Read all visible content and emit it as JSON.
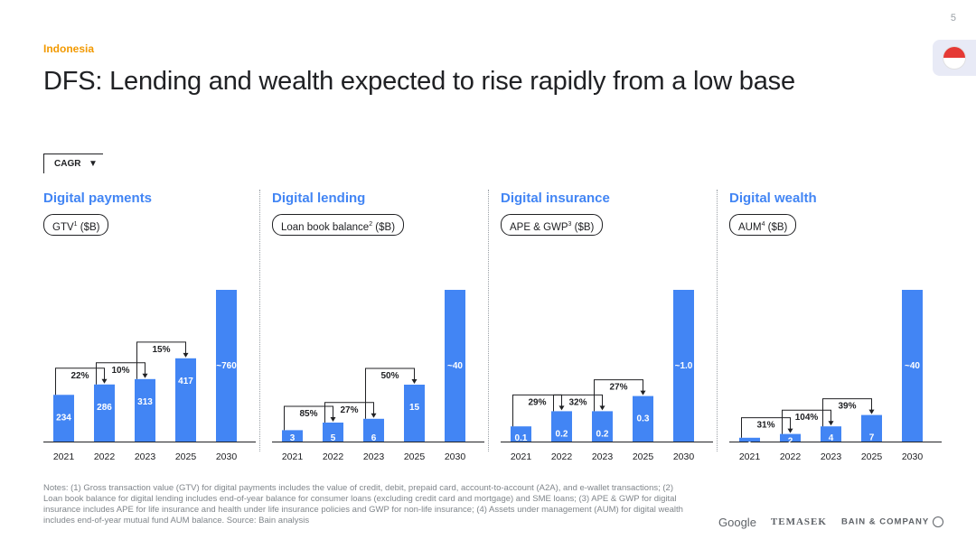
{
  "page_number": "5",
  "eyebrow": "Indonesia",
  "title": "DFS: Lending and wealth expected to rise rapidly from a low base",
  "cagr_label": "CAGR",
  "colors": {
    "bar": "#4285f4",
    "accent": "#f29900",
    "title_blue": "#4285f4"
  },
  "icons": {
    "flag": "indonesia-flag-icon"
  },
  "chart_data": [
    {
      "type": "bar",
      "title": "Digital payments",
      "unit_label": {
        "pre": "GTV",
        "sup": "1",
        "post": " ($B)"
      },
      "categories": [
        "2021",
        "2022",
        "2023",
        "2025",
        "2030"
      ],
      "values": [
        234,
        286,
        313,
        417,
        760
      ],
      "value_labels": [
        "234",
        "286",
        "313",
        "417",
        "~760"
      ],
      "cagr": [
        {
          "from": 0,
          "to": 1,
          "label": "22%"
        },
        {
          "from": 1,
          "to": 2,
          "label": "10%"
        },
        {
          "from": 2,
          "to": 3,
          "label": "15%"
        }
      ],
      "ylim": [
        0,
        760
      ]
    },
    {
      "type": "bar",
      "title": "Digital lending",
      "unit_label": {
        "pre": "Loan book balance",
        "sup": "2",
        "post": " ($B)"
      },
      "categories": [
        "2021",
        "2022",
        "2023",
        "2025",
        "2030"
      ],
      "values": [
        3,
        5,
        6,
        15,
        40
      ],
      "value_labels": [
        "3",
        "5",
        "6",
        "15",
        "~40"
      ],
      "cagr": [
        {
          "from": 0,
          "to": 1,
          "label": "85%"
        },
        {
          "from": 1,
          "to": 2,
          "label": "27%"
        },
        {
          "from": 2,
          "to": 3,
          "label": "50%"
        }
      ],
      "ylim": [
        0,
        40
      ]
    },
    {
      "type": "bar",
      "title": "Digital insurance",
      "unit_label": {
        "pre": "APE & GWP",
        "sup": "3",
        "post": " ($B)"
      },
      "categories": [
        "2021",
        "2022",
        "2023",
        "2025",
        "2030"
      ],
      "values": [
        0.1,
        0.2,
        0.2,
        0.3,
        1.0
      ],
      "value_labels": [
        "0.1",
        "0.2",
        "0.2",
        "0.3",
        "~1.0"
      ],
      "cagr": [
        {
          "from": 0,
          "to": 1,
          "label": "29%"
        },
        {
          "from": 1,
          "to": 2,
          "label": "32%"
        },
        {
          "from": 2,
          "to": 3,
          "label": "27%"
        }
      ],
      "ylim": [
        0,
        1.0
      ]
    },
    {
      "type": "bar",
      "title": "Digital wealth",
      "unit_label": {
        "pre": "AUM",
        "sup": "4",
        "post": " ($B)"
      },
      "categories": [
        "2021",
        "2022",
        "2023",
        "2025",
        "2030"
      ],
      "values": [
        1,
        2,
        4,
        7,
        40
      ],
      "value_labels": [
        "1",
        "2",
        "4",
        "7",
        "~40"
      ],
      "cagr": [
        {
          "from": 0,
          "to": 1,
          "label": "31%"
        },
        {
          "from": 1,
          "to": 2,
          "label": "104%"
        },
        {
          "from": 2,
          "to": 3,
          "label": "39%"
        }
      ],
      "ylim": [
        0,
        40
      ]
    }
  ],
  "notes": "Notes: (1) Gross transaction value (GTV) for digital payments includes the value of credit, debit, prepaid card, account-to-account (A2A), and e-wallet transactions; (2) Loan book balance for digital lending includes end-of-year balance for consumer loans (excluding credit card and mortgage) and SME loans; (3) APE & GWP for digital insurance includes APE for life insurance and health under life insurance policies and GWP for non-life insurance; (4) Assets under management (AUM) for digital wealth includes end-of-year mutual fund AUM balance. Source: Bain analysis",
  "logos": {
    "google": "Google",
    "temasek": "TEMASEK",
    "bain": "BAIN & COMPANY"
  }
}
